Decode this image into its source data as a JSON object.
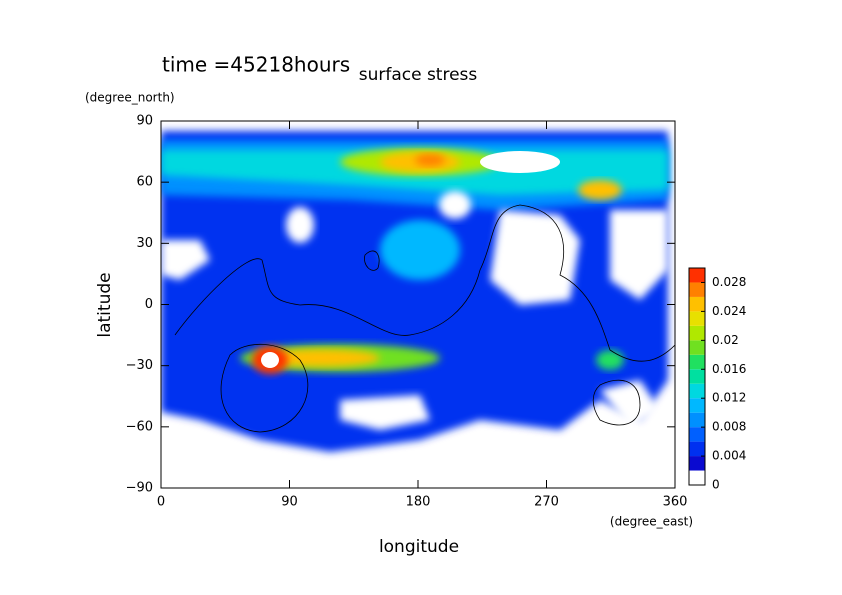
{
  "chart_data": {
    "type": "contour",
    "title": "surface stress",
    "annotation": "time =45218hours",
    "x_label": "longitude",
    "x_unit": "(degree_east)",
    "y_label": "latitude",
    "y_unit": "(degree_north)",
    "xlim": [
      0,
      360
    ],
    "xticks": [
      0,
      90,
      180,
      270,
      360
    ],
    "ylim": [
      -90,
      90
    ],
    "yticks": [
      90,
      60,
      30,
      0,
      {
        "value": -30,
        "label": "−30"
      },
      {
        "value": -60,
        "label": "−60"
      },
      {
        "value": -90,
        "label": "−90"
      }
    ],
    "colorbar": {
      "levels": [
        0,
        0.002,
        0.004,
        0.006,
        0.008,
        0.01,
        0.012,
        0.014,
        0.016,
        0.018,
        0.02,
        0.022,
        0.024,
        0.026,
        0.028,
        0.03
      ],
      "colors": [
        "#ffffff",
        "#0a0ad0",
        "#0030f0",
        "#0060ff",
        "#0090ff",
        "#00b8ff",
        "#00d8e0",
        "#00e0a0",
        "#20e060",
        "#70e020",
        "#b0e800",
        "#e8e000",
        "#ffc000",
        "#ff8000",
        "#ff3000"
      ],
      "ticks": [
        0,
        0.004,
        0.008,
        0.012,
        0.016,
        0.02,
        0.024,
        0.028
      ]
    }
  }
}
